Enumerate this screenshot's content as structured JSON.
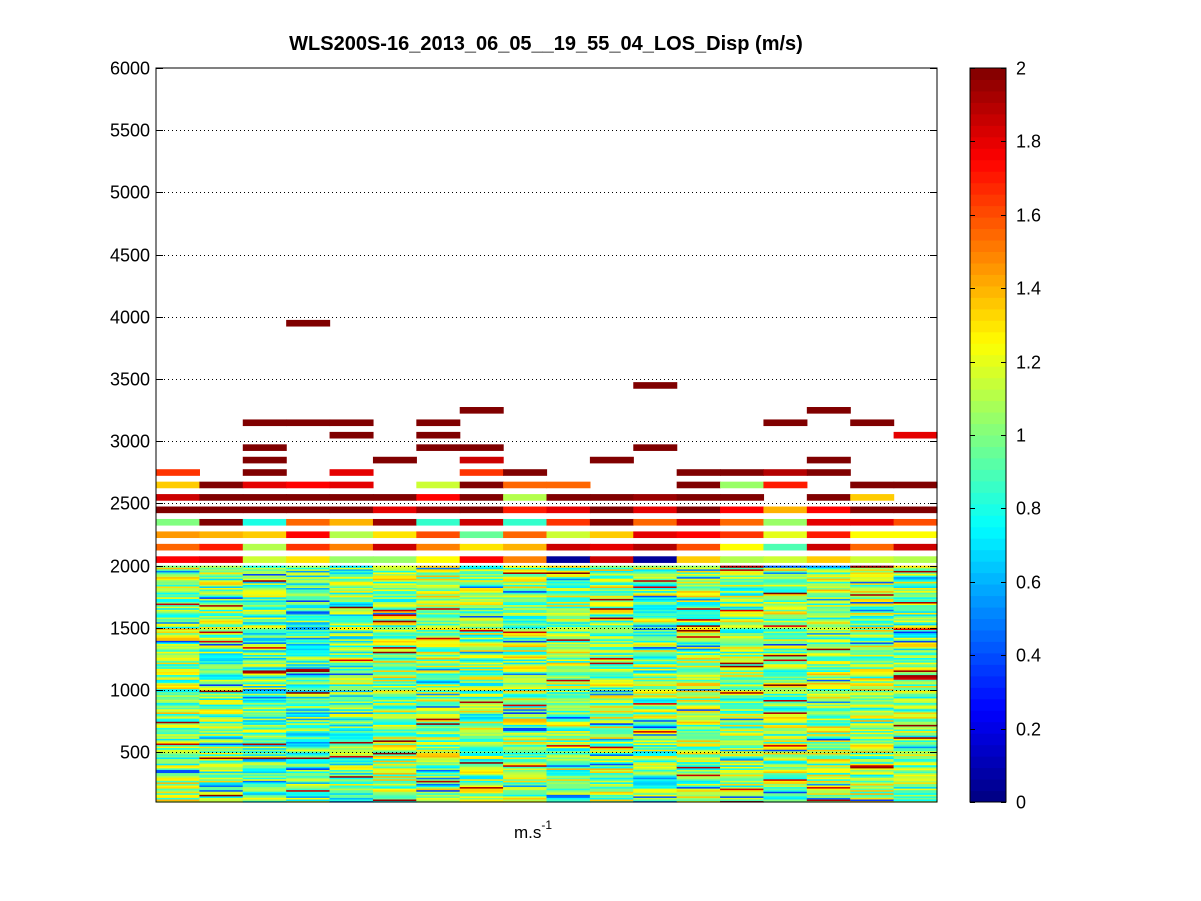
{
  "chart_data": {
    "type": "heatmap",
    "title": "WLS200S-16_2013_06_05__19_55_04_LOS_Disp (m/s)",
    "xlabel_base": "m.s",
    "xlabel_sup": "-1",
    "ylabel": "",
    "ylim": [
      100,
      6000
    ],
    "yticks": [
      500,
      1000,
      1500,
      2000,
      2500,
      3000,
      3500,
      4000,
      4500,
      5000,
      5500,
      6000
    ],
    "grid": true,
    "colormap": "jet",
    "colorbar": {
      "min": 0,
      "max": 2,
      "ticks": [
        "0",
        "0.2",
        "0.4",
        "0.6",
        "0.8",
        "1",
        "1.2",
        "1.4",
        "1.6",
        "1.8",
        "2"
      ]
    },
    "n_columns": 18,
    "row_height": 50,
    "low_cells": {
      "y_min": 100,
      "y_max": 2000,
      "base_values": [
        1.05,
        1.0,
        0.95,
        0.9,
        0.95,
        1.05,
        1.05,
        1.0,
        1.05,
        1.05,
        1.05,
        1.0,
        1.05,
        1.0,
        1.05,
        1.05,
        1.05,
        1.0
      ],
      "spread": 0.35
    },
    "cells": [
      {
        "col": 0,
        "y": 2750,
        "v": 1.65
      },
      {
        "col": 0,
        "y": 2650,
        "v": 1.35
      },
      {
        "col": 0,
        "y": 2550,
        "v": 1.85
      },
      {
        "col": 0,
        "y": 2450,
        "v": 2.0
      },
      {
        "col": 0,
        "y": 2350,
        "v": 1.0
      },
      {
        "col": 0,
        "y": 2250,
        "v": 1.45
      },
      {
        "col": 0,
        "y": 2150,
        "v": 1.55
      },
      {
        "col": 0,
        "y": 2050,
        "v": 1.75
      },
      {
        "col": 1,
        "y": 2650,
        "v": 2.0
      },
      {
        "col": 1,
        "y": 2550,
        "v": 2.0
      },
      {
        "col": 1,
        "y": 2450,
        "v": 2.0
      },
      {
        "col": 1,
        "y": 2350,
        "v": 2.0
      },
      {
        "col": 1,
        "y": 2250,
        "v": 1.4
      },
      {
        "col": 1,
        "y": 2150,
        "v": 1.7
      },
      {
        "col": 1,
        "y": 2050,
        "v": 1.8
      },
      {
        "col": 2,
        "y": 3150,
        "v": 2.0
      },
      {
        "col": 2,
        "y": 2950,
        "v": 2.0
      },
      {
        "col": 2,
        "y": 2850,
        "v": 2.0
      },
      {
        "col": 2,
        "y": 2750,
        "v": 2.0
      },
      {
        "col": 2,
        "y": 2650,
        "v": 1.8
      },
      {
        "col": 2,
        "y": 2550,
        "v": 2.0
      },
      {
        "col": 2,
        "y": 2450,
        "v": 2.0
      },
      {
        "col": 2,
        "y": 2350,
        "v": 0.8
      },
      {
        "col": 2,
        "y": 2250,
        "v": 1.35
      },
      {
        "col": 2,
        "y": 2150,
        "v": 1.1
      },
      {
        "col": 2,
        "y": 2050,
        "v": 1.15
      },
      {
        "col": 3,
        "y": 3950,
        "v": 2.0
      },
      {
        "col": 3,
        "y": 3150,
        "v": 2.0
      },
      {
        "col": 3,
        "y": 2650,
        "v": 1.75
      },
      {
        "col": 3,
        "y": 2550,
        "v": 2.0
      },
      {
        "col": 3,
        "y": 2450,
        "v": 2.0
      },
      {
        "col": 3,
        "y": 2350,
        "v": 1.55
      },
      {
        "col": 3,
        "y": 2250,
        "v": 1.75
      },
      {
        "col": 3,
        "y": 2150,
        "v": 1.65
      },
      {
        "col": 3,
        "y": 2050,
        "v": 1.3
      },
      {
        "col": 4,
        "y": 3150,
        "v": 2.0
      },
      {
        "col": 4,
        "y": 3050,
        "v": 2.0
      },
      {
        "col": 4,
        "y": 2750,
        "v": 1.8
      },
      {
        "col": 4,
        "y": 2650,
        "v": 1.8
      },
      {
        "col": 4,
        "y": 2550,
        "v": 2.0
      },
      {
        "col": 4,
        "y": 2450,
        "v": 2.0
      },
      {
        "col": 4,
        "y": 2350,
        "v": 1.4
      },
      {
        "col": 4,
        "y": 2250,
        "v": 1.1
      },
      {
        "col": 4,
        "y": 2150,
        "v": 1.5
      },
      {
        "col": 4,
        "y": 2050,
        "v": 1.05
      },
      {
        "col": 5,
        "y": 2850,
        "v": 2.0
      },
      {
        "col": 5,
        "y": 2550,
        "v": 2.0
      },
      {
        "col": 5,
        "y": 2450,
        "v": 1.8
      },
      {
        "col": 5,
        "y": 2350,
        "v": 1.95
      },
      {
        "col": 5,
        "y": 2250,
        "v": 1.3
      },
      {
        "col": 5,
        "y": 2150,
        "v": 1.85
      },
      {
        "col": 5,
        "y": 2050,
        "v": 1.05
      },
      {
        "col": 6,
        "y": 3150,
        "v": 2.0
      },
      {
        "col": 6,
        "y": 3050,
        "v": 2.0
      },
      {
        "col": 6,
        "y": 2950,
        "v": 2.0
      },
      {
        "col": 6,
        "y": 2650,
        "v": 1.15
      },
      {
        "col": 6,
        "y": 2550,
        "v": 1.75
      },
      {
        "col": 6,
        "y": 2450,
        "v": 1.95
      },
      {
        "col": 6,
        "y": 2350,
        "v": 0.85
      },
      {
        "col": 6,
        "y": 2250,
        "v": 1.6
      },
      {
        "col": 6,
        "y": 2150,
        "v": 1.5
      },
      {
        "col": 6,
        "y": 2050,
        "v": 1.25
      },
      {
        "col": 7,
        "y": 3250,
        "v": 2.0
      },
      {
        "col": 7,
        "y": 2950,
        "v": 2.0
      },
      {
        "col": 7,
        "y": 2850,
        "v": 1.85
      },
      {
        "col": 7,
        "y": 2750,
        "v": 1.65
      },
      {
        "col": 7,
        "y": 2650,
        "v": 2.0
      },
      {
        "col": 7,
        "y": 2550,
        "v": 2.0
      },
      {
        "col": 7,
        "y": 2450,
        "v": 2.0
      },
      {
        "col": 7,
        "y": 2350,
        "v": 1.85
      },
      {
        "col": 7,
        "y": 2250,
        "v": 0.95
      },
      {
        "col": 7,
        "y": 2150,
        "v": 1.3
      },
      {
        "col": 7,
        "y": 2050,
        "v": 1.75
      },
      {
        "col": 8,
        "y": 2750,
        "v": 2.0
      },
      {
        "col": 8,
        "y": 2650,
        "v": 1.55
      },
      {
        "col": 8,
        "y": 2550,
        "v": 1.1
      },
      {
        "col": 8,
        "y": 2450,
        "v": 1.7
      },
      {
        "col": 8,
        "y": 2350,
        "v": 0.85
      },
      {
        "col": 8,
        "y": 2250,
        "v": 1.55
      },
      {
        "col": 8,
        "y": 2150,
        "v": 1.4
      },
      {
        "col": 8,
        "y": 2050,
        "v": 1.5
      },
      {
        "col": 9,
        "y": 2650,
        "v": 1.55
      },
      {
        "col": 9,
        "y": 2550,
        "v": 2.0
      },
      {
        "col": 9,
        "y": 2450,
        "v": 1.8
      },
      {
        "col": 9,
        "y": 2350,
        "v": 1.65
      },
      {
        "col": 9,
        "y": 2250,
        "v": 1.15
      },
      {
        "col": 9,
        "y": 2150,
        "v": 1.85
      },
      {
        "col": 9,
        "y": 2050,
        "v": 0.05
      },
      {
        "col": 10,
        "y": 2850,
        "v": 2.0
      },
      {
        "col": 10,
        "y": 2550,
        "v": 2.0
      },
      {
        "col": 10,
        "y": 2450,
        "v": 2.0
      },
      {
        "col": 10,
        "y": 2350,
        "v": 2.0
      },
      {
        "col": 10,
        "y": 2250,
        "v": 1.35
      },
      {
        "col": 10,
        "y": 2150,
        "v": 1.8
      },
      {
        "col": 10,
        "y": 2050,
        "v": 1.85
      },
      {
        "col": 11,
        "y": 3450,
        "v": 2.0
      },
      {
        "col": 11,
        "y": 2950,
        "v": 2.0
      },
      {
        "col": 11,
        "y": 2550,
        "v": 1.95
      },
      {
        "col": 11,
        "y": 2450,
        "v": 1.8
      },
      {
        "col": 11,
        "y": 2350,
        "v": 1.55
      },
      {
        "col": 11,
        "y": 2250,
        "v": 1.8
      },
      {
        "col": 11,
        "y": 2150,
        "v": 1.9
      },
      {
        "col": 11,
        "y": 2050,
        "v": 0.05
      },
      {
        "col": 12,
        "y": 2750,
        "v": 2.0
      },
      {
        "col": 12,
        "y": 2650,
        "v": 2.0
      },
      {
        "col": 12,
        "y": 2550,
        "v": 2.0
      },
      {
        "col": 12,
        "y": 2450,
        "v": 2.0
      },
      {
        "col": 12,
        "y": 2350,
        "v": 1.85
      },
      {
        "col": 12,
        "y": 2250,
        "v": 1.75
      },
      {
        "col": 12,
        "y": 2150,
        "v": 1.6
      },
      {
        "col": 12,
        "y": 2050,
        "v": 1.35
      },
      {
        "col": 13,
        "y": 2750,
        "v": 2.0
      },
      {
        "col": 13,
        "y": 2650,
        "v": 1.05
      },
      {
        "col": 13,
        "y": 2550,
        "v": 2.0
      },
      {
        "col": 13,
        "y": 2450,
        "v": 1.75
      },
      {
        "col": 13,
        "y": 2350,
        "v": 1.55
      },
      {
        "col": 13,
        "y": 2250,
        "v": 1.65
      },
      {
        "col": 13,
        "y": 2150,
        "v": 1.25
      },
      {
        "col": 13,
        "y": 2050,
        "v": 1.1
      },
      {
        "col": 14,
        "y": 3150,
        "v": 2.0
      },
      {
        "col": 14,
        "y": 2750,
        "v": 1.9
      },
      {
        "col": 14,
        "y": 2650,
        "v": 1.7
      },
      {
        "col": 14,
        "y": 2450,
        "v": 1.4
      },
      {
        "col": 14,
        "y": 2350,
        "v": 1.05
      },
      {
        "col": 14,
        "y": 2250,
        "v": 1.2
      },
      {
        "col": 14,
        "y": 2150,
        "v": 0.9
      },
      {
        "col": 14,
        "y": 2050,
        "v": 1.15
      },
      {
        "col": 15,
        "y": 3250,
        "v": 2.0
      },
      {
        "col": 15,
        "y": 2850,
        "v": 2.0
      },
      {
        "col": 15,
        "y": 2750,
        "v": 2.0
      },
      {
        "col": 15,
        "y": 2550,
        "v": 2.0
      },
      {
        "col": 15,
        "y": 2450,
        "v": 1.75
      },
      {
        "col": 15,
        "y": 2350,
        "v": 1.8
      },
      {
        "col": 15,
        "y": 2250,
        "v": 1.7
      },
      {
        "col": 15,
        "y": 2150,
        "v": 1.85
      },
      {
        "col": 15,
        "y": 2050,
        "v": 1.35
      },
      {
        "col": 16,
        "y": 3150,
        "v": 2.0
      },
      {
        "col": 16,
        "y": 2650,
        "v": 2.0
      },
      {
        "col": 16,
        "y": 2550,
        "v": 1.35
      },
      {
        "col": 16,
        "y": 2450,
        "v": 2.0
      },
      {
        "col": 16,
        "y": 2350,
        "v": 1.8
      },
      {
        "col": 16,
        "y": 2250,
        "v": 1.25
      },
      {
        "col": 16,
        "y": 2150,
        "v": 1.55
      },
      {
        "col": 16,
        "y": 2050,
        "v": 1.15
      },
      {
        "col": 17,
        "y": 3050,
        "v": 1.8
      },
      {
        "col": 17,
        "y": 2650,
        "v": 2.0
      },
      {
        "col": 17,
        "y": 2450,
        "v": 2.0
      },
      {
        "col": 17,
        "y": 2350,
        "v": 1.6
      },
      {
        "col": 17,
        "y": 2250,
        "v": 1.25
      },
      {
        "col": 17,
        "y": 2150,
        "v": 1.85
      },
      {
        "col": 17,
        "y": 2050,
        "v": 1.1
      }
    ]
  }
}
